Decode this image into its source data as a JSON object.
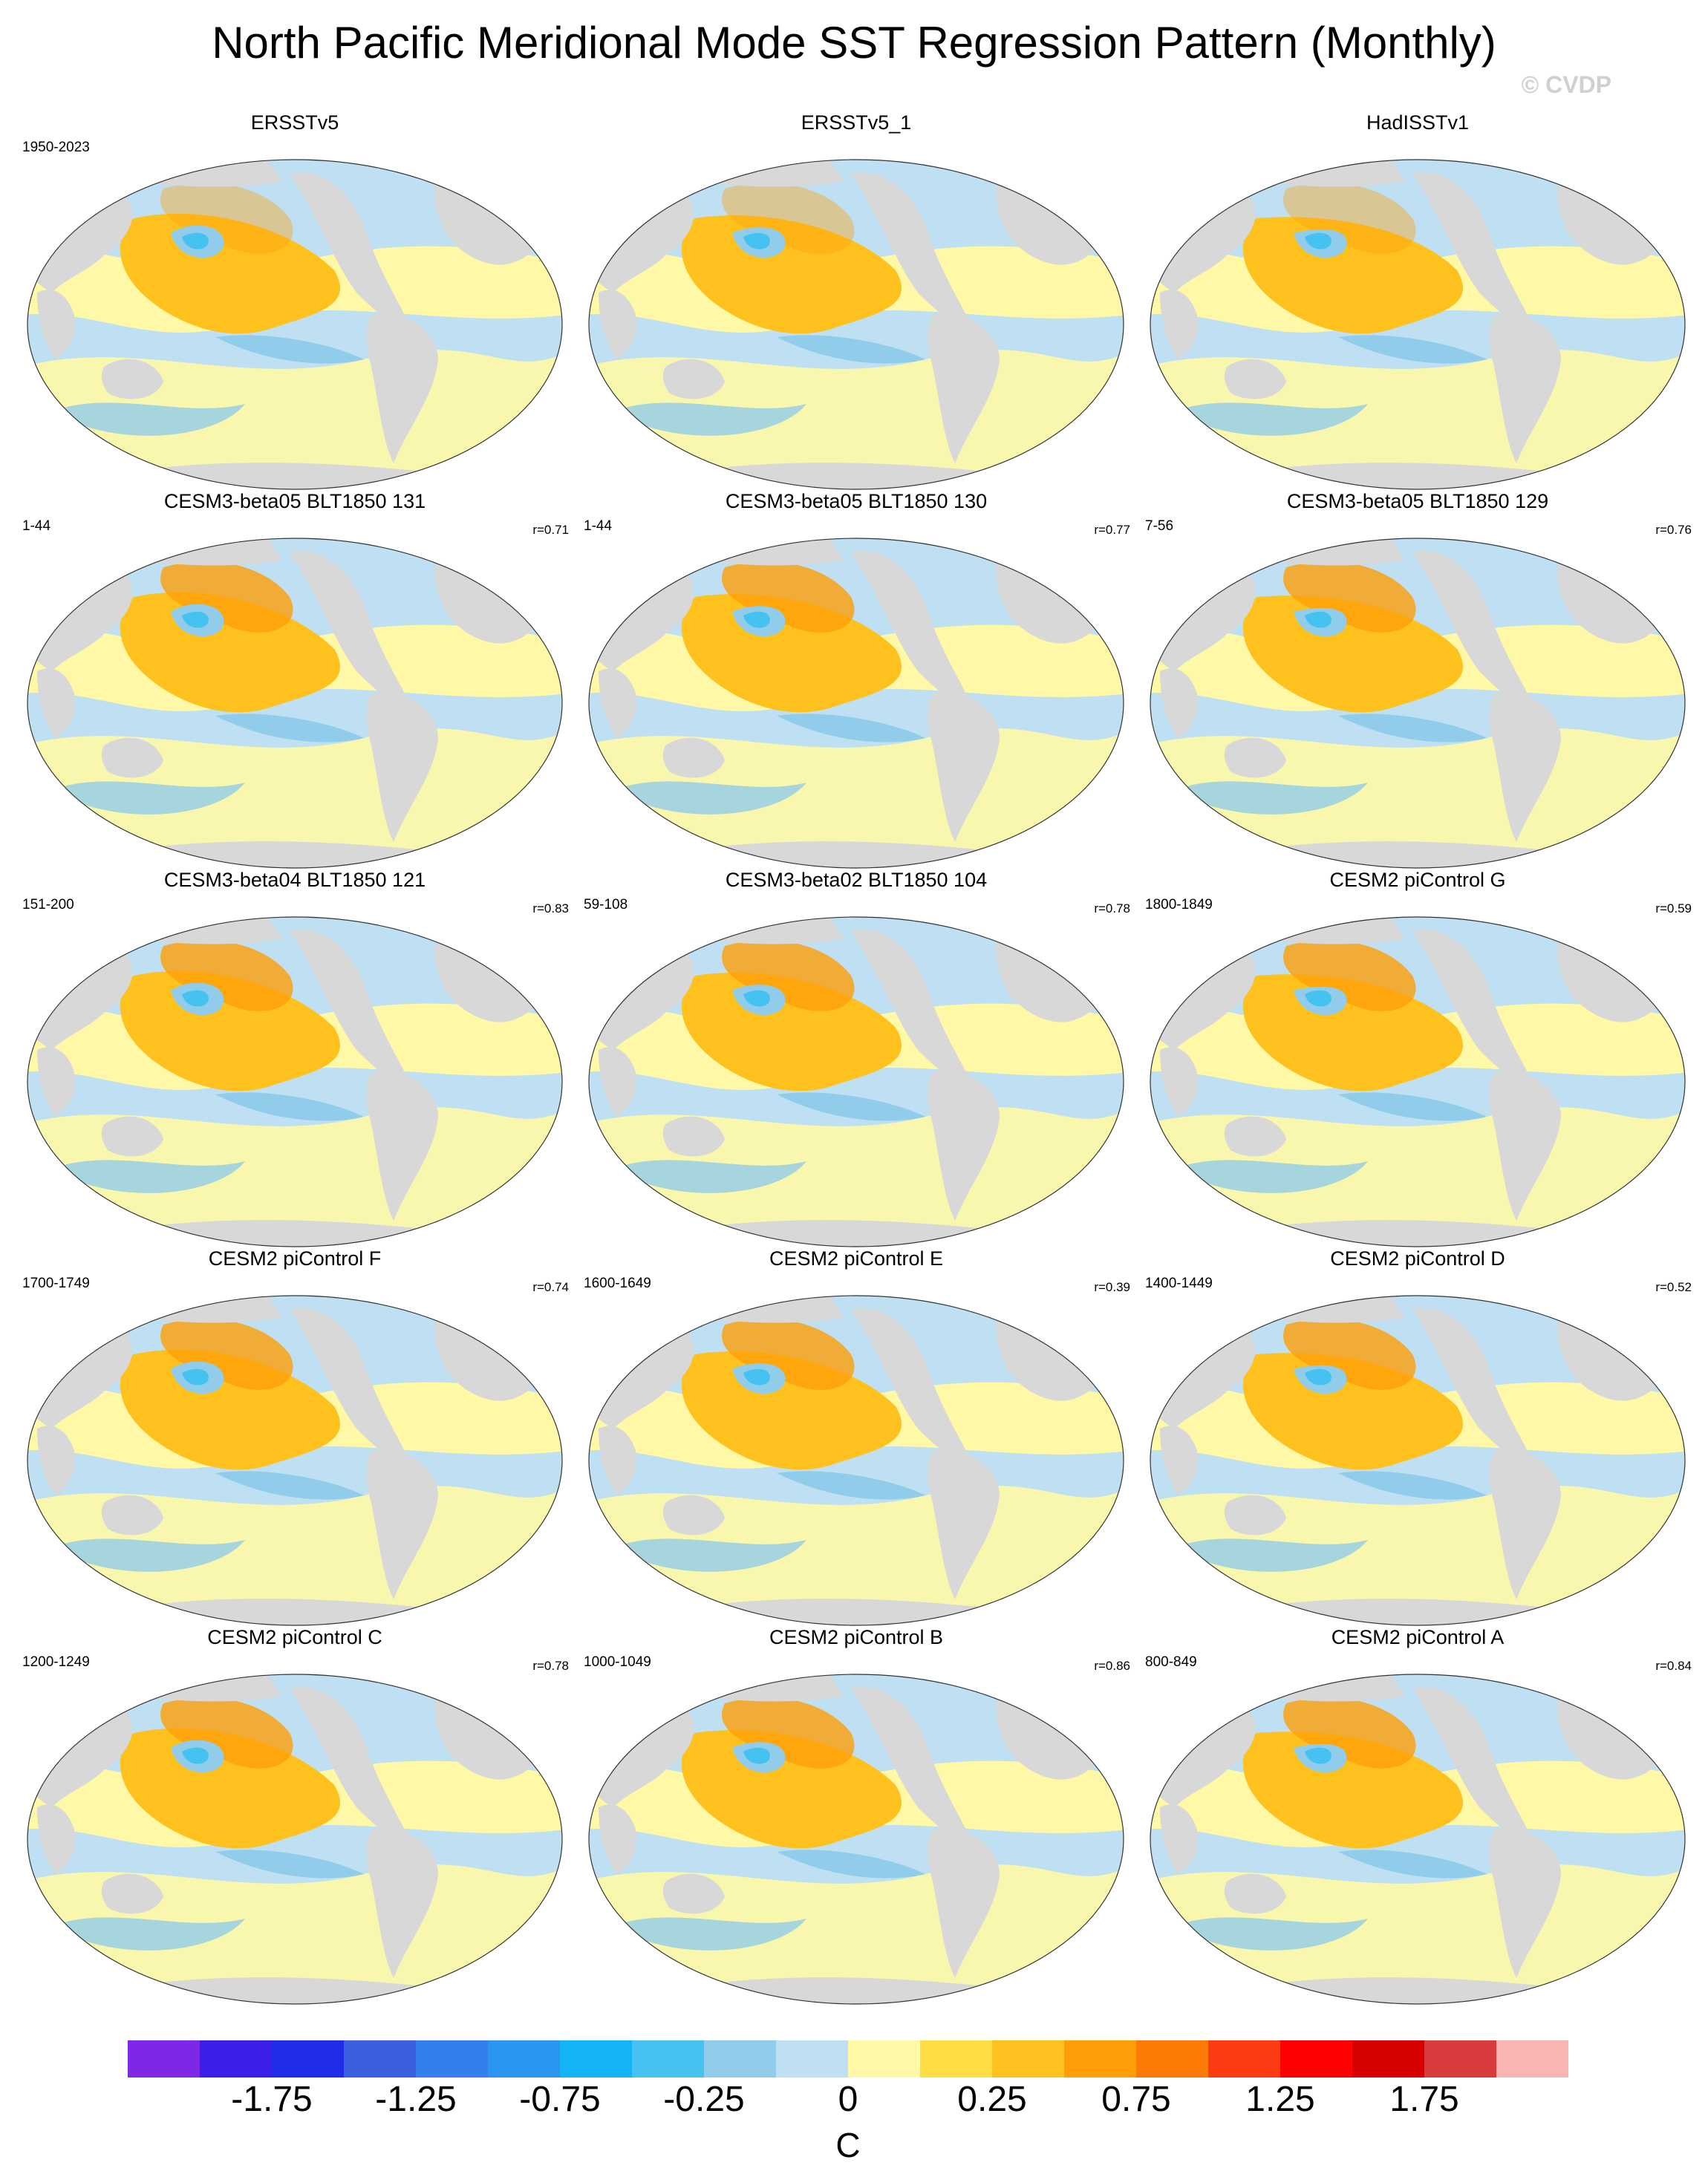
{
  "title": "North Pacific Meridional Mode SST Regression Pattern (Monthly)",
  "copyright": "© CVDP",
  "panels": [
    {
      "title": "ERSSTv5",
      "period": "1950-2023",
      "r": ""
    },
    {
      "title": "ERSSTv5_1",
      "period": "",
      "r": ""
    },
    {
      "title": "HadISSTv1",
      "period": "",
      "r": ""
    },
    {
      "title": "CESM3-beta05 BLT1850 131",
      "period": "1-44",
      "r": "r=0.71"
    },
    {
      "title": "CESM3-beta05 BLT1850 130",
      "period": "1-44",
      "r": "r=0.77"
    },
    {
      "title": "CESM3-beta05 BLT1850 129",
      "period": "7-56",
      "r": "r=0.76"
    },
    {
      "title": "CESM3-beta04 BLT1850 121",
      "period": "151-200",
      "r": "r=0.83"
    },
    {
      "title": "CESM3-beta02 BLT1850 104",
      "period": "59-108",
      "r": "r=0.78"
    },
    {
      "title": "CESM2 piControl G",
      "period": "1800-1849",
      "r": "r=0.59"
    },
    {
      "title": "CESM2 piControl F",
      "period": "1700-1749",
      "r": "r=0.74"
    },
    {
      "title": "CESM2 piControl E",
      "period": "1600-1649",
      "r": "r=0.39"
    },
    {
      "title": "CESM2 piControl D",
      "period": "1400-1449",
      "r": "r=0.52"
    },
    {
      "title": "CESM2 piControl C",
      "period": "1200-1249",
      "r": "r=0.78"
    },
    {
      "title": "CESM2 piControl B",
      "period": "1000-1049",
      "r": "r=0.86"
    },
    {
      "title": "CESM2 piControl A",
      "period": "800-849",
      "r": "r=0.84"
    }
  ],
  "colorbar": {
    "unit": "C",
    "colors": [
      "#7f27e6",
      "#3b1ee8",
      "#1f2de8",
      "#3c5fe0",
      "#357ef0",
      "#2a96f2",
      "#13b4f5",
      "#46c2f0",
      "#91cdea",
      "#bee0f2",
      "#fff8a6",
      "#fede44",
      "#fec11d",
      "#fe9f08",
      "#fe7a06",
      "#fc3d14",
      "#fe0000",
      "#d60000",
      "#d83c3c",
      "#fbb4b4"
    ],
    "tick_labels": [
      "-1.75",
      "-1.25",
      "-0.75",
      "-0.25",
      "0",
      "0.25",
      "0.75",
      "1.25",
      "1.75"
    ]
  },
  "map_colors": {
    "land": "#d8d8d8",
    "neutral_warm": "#fff8a6",
    "neutral_cool": "#bee0f2",
    "warm": "#fec11d",
    "warm2": "#fe9f08",
    "cool": "#91cdea",
    "cool2": "#46c2f0"
  }
}
